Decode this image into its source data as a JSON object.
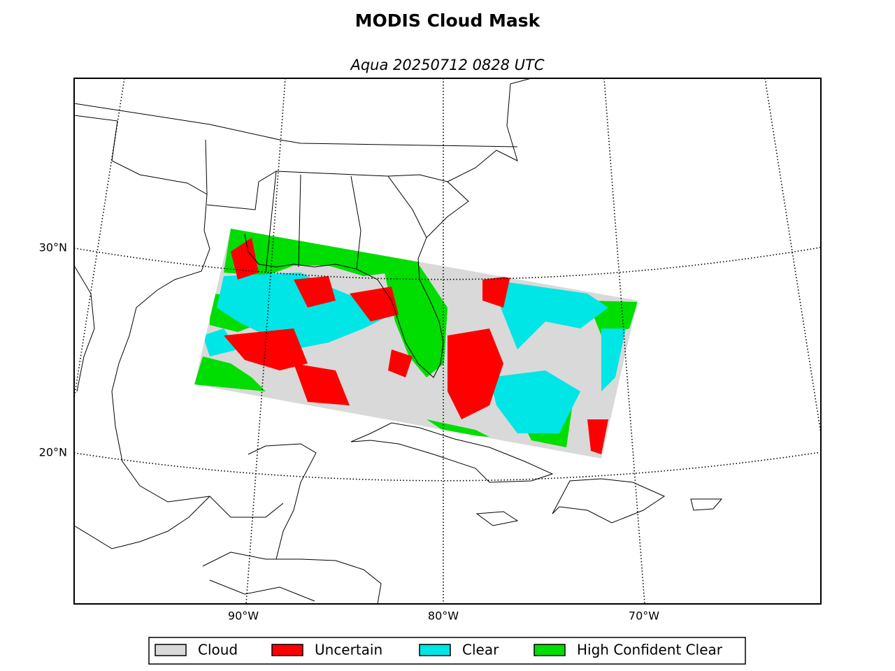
{
  "header": {
    "title": "MODIS Cloud Mask",
    "subtitle": "Aqua 20250712 0828 UTC"
  },
  "map": {
    "lat_labels": [
      "30°N",
      "20°N"
    ],
    "lon_labels": [
      "90°W",
      "80°W",
      "70°W"
    ]
  },
  "legend": [
    {
      "label": "Cloud",
      "color": "#d9d9d9"
    },
    {
      "label": "Uncertain",
      "color": "#ff0000"
    },
    {
      "label": "Clear",
      "color": "#00e5e5"
    },
    {
      "label": "High Confident Clear",
      "color": "#00dd00"
    }
  ]
}
